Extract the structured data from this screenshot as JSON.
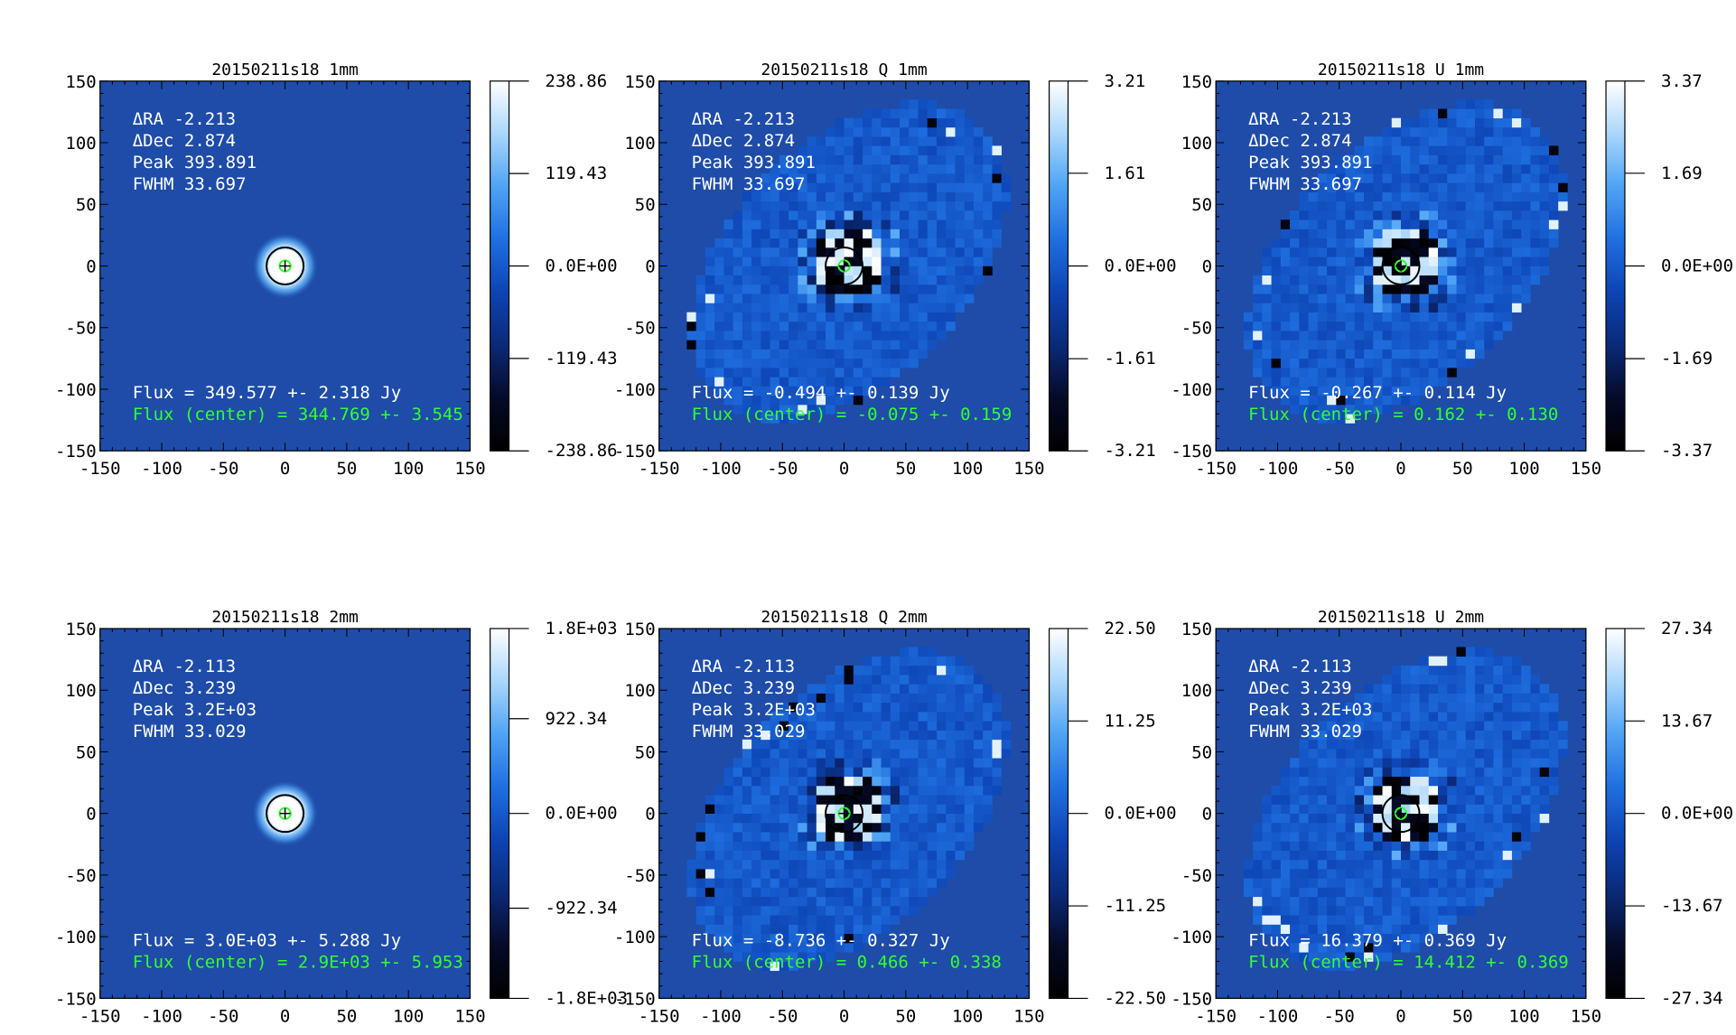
{
  "figure": {
    "colormap": [
      "#000000",
      "#050a28",
      "#0a2a78",
      "#0d44b4",
      "#1f6fe0",
      "#4ea3f4",
      "#a9d6fb",
      "#ffffff"
    ],
    "background_color": "#1e4ca8",
    "annotation_color": "#ffffff",
    "center_flux_color": "#33ff33"
  },
  "chart_data": [
    {
      "type": "heatmap",
      "title": "20150211s18 1mm",
      "map": "intensity",
      "xlim": [
        -150,
        150
      ],
      "ylim": [
        -150,
        150
      ],
      "xticks": [
        "-150",
        "-100",
        "-50",
        "0",
        "50",
        "100",
        "150"
      ],
      "yticks": [
        "150",
        "100",
        "50",
        "0",
        "-50",
        "-100",
        "-150"
      ],
      "colorbar": {
        "range": [
          -238.86,
          238.86
        ],
        "ticks": [
          "238.86",
          "119.43",
          "0.0E+00",
          "-119.43",
          "-238.86"
        ]
      },
      "annotations": [
        "ΔRA -2.213",
        "ΔDec 2.874",
        "Peak 393.891",
        "FWHM 33.697"
      ],
      "flux": "Flux = 349.577 +- 2.318 Jy",
      "flux_center": "Flux (center) = 344.769 +- 3.545"
    },
    {
      "type": "heatmap",
      "title": "20150211s18 Q 1mm",
      "map": "polarization",
      "xlim": [
        -150,
        150
      ],
      "ylim": [
        -150,
        150
      ],
      "xticks": [
        "-150",
        "-100",
        "-50",
        "0",
        "50",
        "100",
        "150"
      ],
      "yticks": [
        "150",
        "100",
        "50",
        "0",
        "-50",
        "-100",
        "-150"
      ],
      "colorbar": {
        "range": [
          -3.21,
          3.21
        ],
        "ticks": [
          "3.21",
          "1.61",
          "0.0E+00",
          "-1.61",
          "-3.21"
        ]
      },
      "annotations": [
        "ΔRA -2.213",
        "ΔDec 2.874",
        "Peak 393.891",
        "FWHM 33.697"
      ],
      "flux": "Flux = -0.494 +- 0.139 Jy",
      "flux_center": "Flux (center) = -0.075 +- 0.159"
    },
    {
      "type": "heatmap",
      "title": "20150211s18 U 1mm",
      "map": "polarization",
      "xlim": [
        -150,
        150
      ],
      "ylim": [
        -150,
        150
      ],
      "xticks": [
        "-150",
        "-100",
        "-50",
        "0",
        "50",
        "100",
        "150"
      ],
      "yticks": [
        "150",
        "100",
        "50",
        "0",
        "-50",
        "-100",
        "-150"
      ],
      "colorbar": {
        "range": [
          -3.37,
          3.37
        ],
        "ticks": [
          "3.37",
          "1.69",
          "0.0E+00",
          "-1.69",
          "-3.37"
        ]
      },
      "annotations": [
        "ΔRA -2.213",
        "ΔDec 2.874",
        "Peak 393.891",
        "FWHM 33.697"
      ],
      "flux": "Flux = -0.267 +- 0.114 Jy",
      "flux_center": "Flux (center) = 0.162 +- 0.130"
    },
    {
      "type": "heatmap",
      "title": "20150211s18 2mm",
      "map": "intensity",
      "xlim": [
        -150,
        150
      ],
      "ylim": [
        -150,
        150
      ],
      "xticks": [
        "-150",
        "-100",
        "-50",
        "0",
        "50",
        "100",
        "150"
      ],
      "yticks": [
        "150",
        "100",
        "50",
        "0",
        "-50",
        "-100",
        "-150"
      ],
      "colorbar": {
        "range": [
          -1800,
          1800
        ],
        "ticks": [
          "1.8E+03",
          "922.34",
          "0.0E+00",
          "-922.34",
          "-1.8E+03"
        ]
      },
      "annotations": [
        "ΔRA -2.113",
        "ΔDec 3.239",
        "Peak 3.2E+03",
        "FWHM 33.029"
      ],
      "flux": "Flux = 3.0E+03 +- 5.288 Jy",
      "flux_center": "Flux (center) = 2.9E+03 +- 5.953"
    },
    {
      "type": "heatmap",
      "title": "20150211s18 Q 2mm",
      "map": "polarization",
      "xlim": [
        -150,
        150
      ],
      "ylim": [
        -150,
        150
      ],
      "xticks": [
        "-150",
        "-100",
        "-50",
        "0",
        "50",
        "100",
        "150"
      ],
      "yticks": [
        "150",
        "100",
        "50",
        "0",
        "-50",
        "-100",
        "-150"
      ],
      "colorbar": {
        "range": [
          -22.5,
          22.5
        ],
        "ticks": [
          "22.50",
          "11.25",
          "0.0E+00",
          "-11.25",
          "-22.50"
        ]
      },
      "annotations": [
        "ΔRA -2.113",
        "ΔDec 3.239",
        "Peak 3.2E+03",
        "FWHM 33.029"
      ],
      "flux": "Flux = -8.736 +- 0.327 Jy",
      "flux_center": "Flux (center) = 0.466 +- 0.338"
    },
    {
      "type": "heatmap",
      "title": "20150211s18 U 2mm",
      "map": "polarization",
      "xlim": [
        -150,
        150
      ],
      "ylim": [
        -150,
        150
      ],
      "xticks": [
        "-150",
        "-100",
        "-50",
        "0",
        "50",
        "100",
        "150"
      ],
      "yticks": [
        "150",
        "100",
        "50",
        "0",
        "-50",
        "-100",
        "-150"
      ],
      "colorbar": {
        "range": [
          -27.34,
          27.34
        ],
        "ticks": [
          "27.34",
          "13.67",
          "0.0E+00",
          "-13.67",
          "-27.34"
        ]
      },
      "annotations": [
        "ΔRA -2.113",
        "ΔDec 3.239",
        "Peak 3.2E+03",
        "FWHM 33.029"
      ],
      "flux": "Flux = 16.379 +- 0.369 Jy",
      "flux_center": "Flux (center) = 14.412 +- 0.369"
    }
  ]
}
